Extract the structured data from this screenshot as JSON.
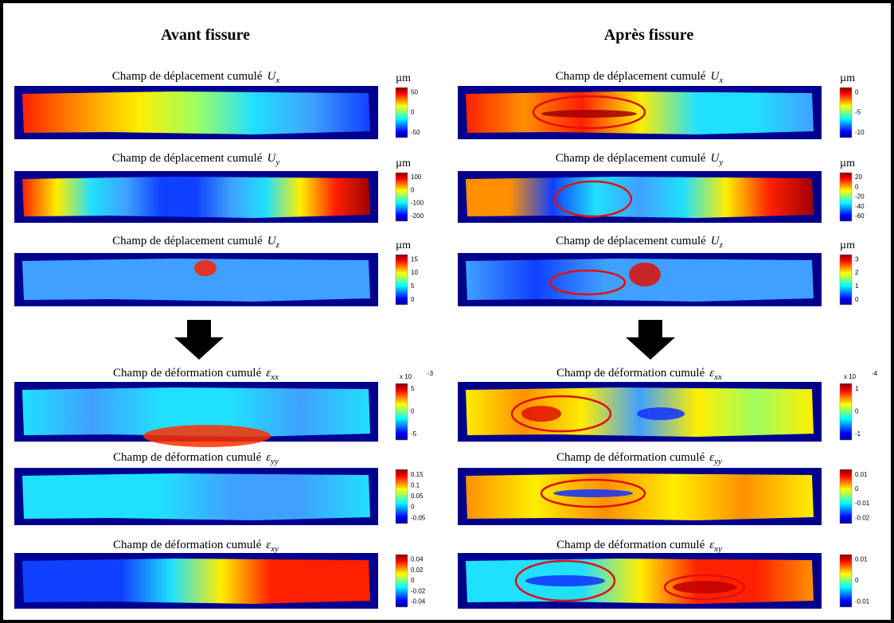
{
  "left": {
    "heading": "Avant fissure",
    "panels": [
      {
        "title": "Champ de déplacement cumulé",
        "symbol": "U",
        "sub": "x",
        "unit": "µm",
        "ticks": [
          "50",
          "0",
          "-50"
        ]
      },
      {
        "title": "Champ de déplacement cumulé",
        "symbol": "U",
        "sub": "y",
        "unit": "µm",
        "ticks": [
          "100",
          "0",
          "-100",
          "-200"
        ]
      },
      {
        "title": "Champ de déplacement cumulé",
        "symbol": "U",
        "sub": "z",
        "unit": "µm",
        "ticks": [
          "15",
          "10",
          "5",
          "0"
        ]
      },
      {
        "title": "Champ de déformation cumulé",
        "symbol": "ε",
        "sub": "xx",
        "scale": "x 10",
        "exp": "-3",
        "ticks": [
          "5",
          "0",
          "-5"
        ]
      },
      {
        "title": "Champ de déformation cumulé",
        "symbol": "ε",
        "sub": "yy",
        "ticks": [
          "0.15",
          "0.1",
          "0.05",
          "0",
          "-0.05"
        ]
      },
      {
        "title": "Champ de déformation cumulé",
        "symbol": "ε",
        "sub": "xy",
        "ticks": [
          "0.04",
          "0.02",
          "0",
          "-0.02",
          "-0.04"
        ]
      }
    ]
  },
  "right": {
    "heading": "Après fissure",
    "panels": [
      {
        "title": "Champ de déplacement cumulé",
        "symbol": "U",
        "sub": "x",
        "unit": "µm",
        "ticks": [
          "0",
          "-5",
          "-10"
        ]
      },
      {
        "title": "Champ de déplacement cumulé",
        "symbol": "U",
        "sub": "y",
        "unit": "µm",
        "ticks": [
          "20",
          "0",
          "-20",
          "-40",
          "-60"
        ]
      },
      {
        "title": "Champ de déplacement cumulé",
        "symbol": "U",
        "sub": "z",
        "unit": "µm",
        "ticks": [
          "3",
          "2",
          "1",
          "0"
        ]
      },
      {
        "title": "Champ de déformation cumulé",
        "symbol": "ε",
        "sub": "xx",
        "scale": "x 10",
        "exp": "-4",
        "ticks": [
          "1",
          "0",
          "-1"
        ]
      },
      {
        "title": "Champ de déformation cumulé",
        "symbol": "ε",
        "sub": "yy",
        "ticks": [
          "0.01",
          "0",
          "-0.01",
          "-0.02"
        ]
      },
      {
        "title": "Champ de déformation cumulé",
        "symbol": "ε",
        "sub": "xy",
        "ticks": [
          "0.01",
          "0",
          "-0.01"
        ]
      }
    ]
  }
}
